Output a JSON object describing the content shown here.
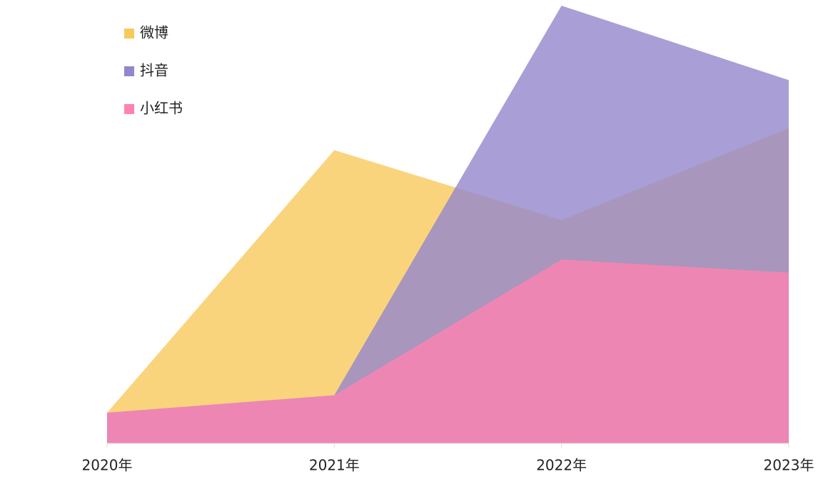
{
  "chart_data": {
    "type": "area",
    "categories": [
      "2020年",
      "2021年",
      "2022年",
      "2023年"
    ],
    "series": [
      {
        "name": "微博",
        "color": "#f9c95c",
        "values": [
          7,
          67,
          51,
          72
        ]
      },
      {
        "name": "抖音",
        "color": "#9486cc",
        "values": [
          7,
          11,
          100,
          83
        ]
      },
      {
        "name": "小红书",
        "color": "#ff82b2",
        "values": [
          7,
          11,
          42,
          39
        ]
      }
    ],
    "ylim": [
      0,
      100
    ],
    "legend": "top-left"
  }
}
